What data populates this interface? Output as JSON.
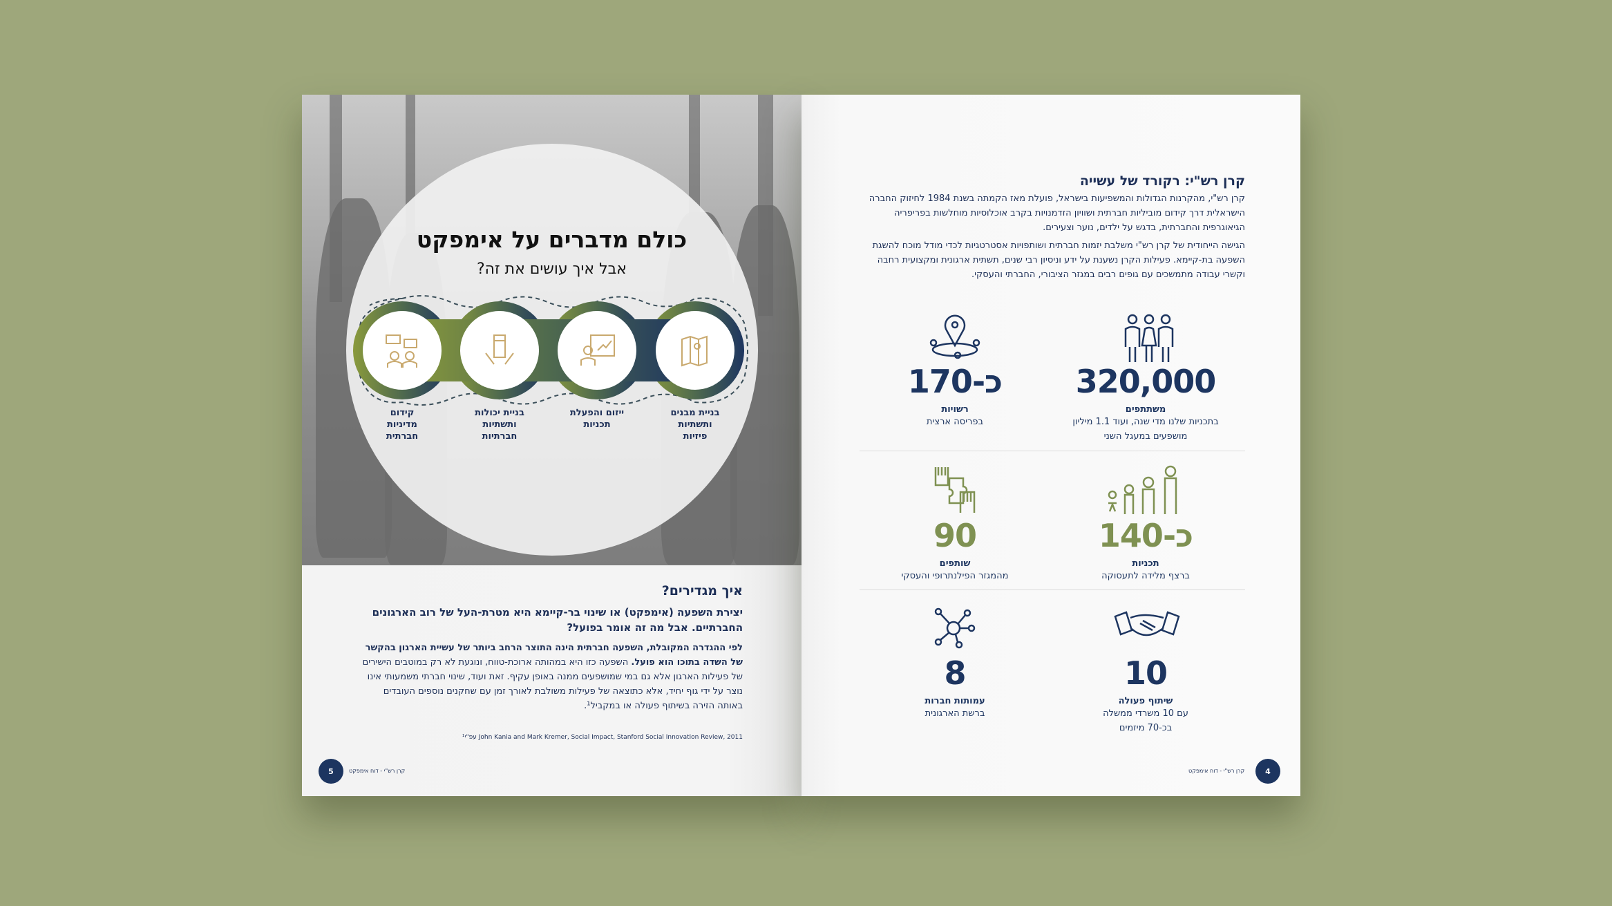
{
  "colors": {
    "background": "#9ea77b",
    "navy": "#1d3560",
    "olive": "#7f9152",
    "gold": "#c9a96e"
  },
  "left_page": {
    "title": "כולם מדברים על אימפקט",
    "subtitle": "אבל איך עושים את זה?",
    "steps": [
      {
        "label": "קידום\nמדיניות\nחברתית",
        "icon": "dialogue-people-icon"
      },
      {
        "label": "בניית יכולות\nותשתיות\nחברתיות",
        "icon": "joined-hands-icon"
      },
      {
        "label": "ייזום והפעלת\nתכניות",
        "icon": "presenter-chart-icon"
      },
      {
        "label": "בניית מבנים\nותשתיות\nפיזיות",
        "icon": "map-pin-icon"
      }
    ],
    "section_heading": "איך מגדירים?",
    "lead": "יצירת השפעה (אימפקט) או שינוי בר-קיימא היא מטרת-העל של רוב הארגונים החברתיים. אבל מה זה אומר בפועל?",
    "body_bold": "לפי ההגדרה המקובלת, השפעה חברתית הינה התוצר הרחב ביותר של עשיית הארגון בהקשר של השדה בתוכו הוא פועל.",
    "body": " השפעה כזו היא במהותה ארוכת-טווח, ונוגעת לא רק במוטבים הישירים של פעילות הארגון אלא גם במי שמושפעים ממנה באופן עקיף. זאת ועוד, שינוי חברתי משמעותי אינו נוצר על ידי גוף יחיד, אלא כתוצאה של פעילות משולבת לאורך זמן עם שחקנים נוספים העובדים באותה הזירה בשיתוף פעולה או במקביל¹.",
    "footnote": "¹עפ\"י John Kania and Mark Kremer, Social Impact, Stanford Social Innovation Review, 2011",
    "page_number": "5",
    "running_title": "קרן רש\"י - דוח אימפקט"
  },
  "right_page": {
    "heading": "קרן רש\"י: רקורד של עשייה",
    "para1": "קרן רש\"י, מהקרנות הגדולות והמשפיעות בישראל, פועלת מאז הקמתה בשנת 1984 לחיזוק החברה הישראלית דרך קידום מוביליות חברתית ושוויון הזדמנויות בקרב אוכלוסיות מוחלשות בפריפריה הגיאוגרפית והחברתית, בדגש על ילדים, נוער וצעירים.",
    "para2": "הגישה הייחודית של קרן רש\"י משלבת יזמות חברתית ושותפויות אסטרטגיות לכדי מודל מוכח להשגת השפעה בת-קיימא. פעילות הקרן נשענת על ידע וניסיון רבי שנים, תשתית ארגונית ומקצועית רחבה וקשרי עבודה מתמשכים עם גופים רבים במגזר הציבורי, החברתי והעסקי.",
    "stats": [
      {
        "number": "320,000",
        "label": "משתתפים",
        "sub": "בתכניות שלנו מדי שנה, ועוד 1.1 מיליון מושפעים במעגל השני",
        "icon": "group-people-icon",
        "color": "navy"
      },
      {
        "number": "כ-170",
        "label": "רשויות",
        "sub": "בפריסה ארצית",
        "icon": "location-network-icon",
        "color": "navy"
      },
      {
        "number": "כ-140",
        "label": "תכניות",
        "sub": "ברצף מלידה לתעסוקה",
        "icon": "growth-family-icon",
        "color": "olive"
      },
      {
        "number": "90",
        "label": "שותפים",
        "sub": "מהמגזר הפילנתרופי והעסקי",
        "icon": "puzzle-hands-icon",
        "color": "olive"
      },
      {
        "number": "10",
        "label": "שיתוף פעולה",
        "sub": "עם 10 משרדי ממשלה בכ-70 מיזמים",
        "icon": "handshake-icon",
        "color": "navy"
      },
      {
        "number": "8",
        "label": "עמותות חברות",
        "sub": "ברשת הארגונית",
        "icon": "network-hub-icon",
        "color": "navy"
      }
    ],
    "page_number": "4",
    "running_title": "קרן רש\"י - דוח אימפקט"
  }
}
